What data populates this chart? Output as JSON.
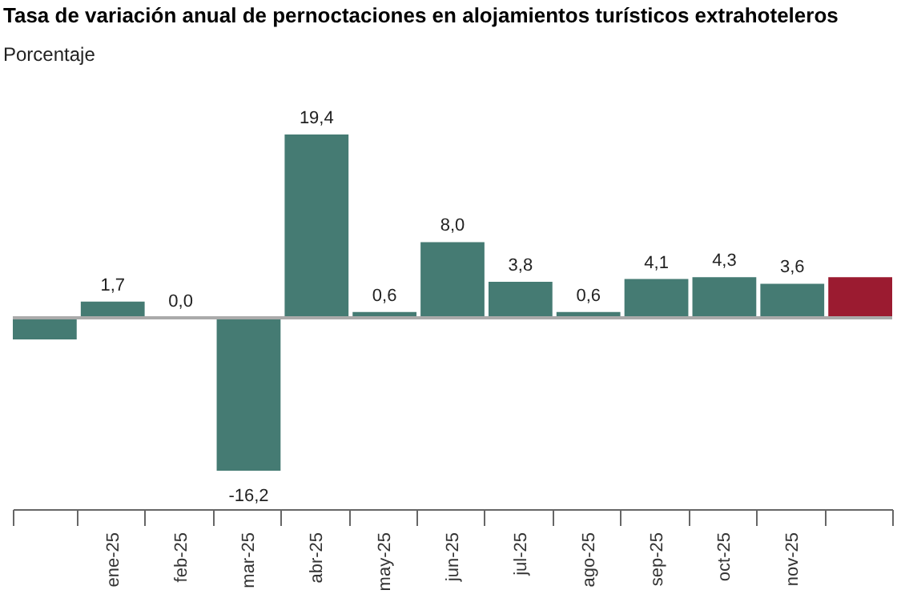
{
  "chart_data": {
    "type": "bar",
    "title": "Tasa de variación anual de pernoctaciones en alojamientos turísticos extrahoteleros",
    "subtitle": "Porcentaje",
    "categories": [
      null,
      "ene-25",
      "feb-25",
      "mar-25",
      "abr-25",
      "may-25",
      "jun-25",
      "jul-25",
      "ago-25",
      "sep-25",
      "oct-25",
      "nov-25",
      null
    ],
    "values": [
      -2.3,
      1.7,
      0.0,
      -16.2,
      19.4,
      0.6,
      8.0,
      3.8,
      0.6,
      4.1,
      4.3,
      3.6,
      4.3
    ],
    "colors": [
      "#457b73",
      "#457b73",
      "#457b73",
      "#457b73",
      "#457b73",
      "#457b73",
      "#457b73",
      "#457b73",
      "#457b73",
      "#457b73",
      "#457b73",
      "#457b73",
      "#9b1b30"
    ],
    "value_labels": [
      null,
      "1,7",
      "0,0",
      "-16,2",
      "19,4",
      "0,6",
      "8,0",
      "3,8",
      "0,6",
      "4,1",
      "4,3",
      "3,6",
      null
    ],
    "tick_labels": "x",
    "grid": false,
    "ref_lines": [
      {
        "axis": "y",
        "value": 0,
        "color": "#aaaaaa"
      }
    ]
  }
}
